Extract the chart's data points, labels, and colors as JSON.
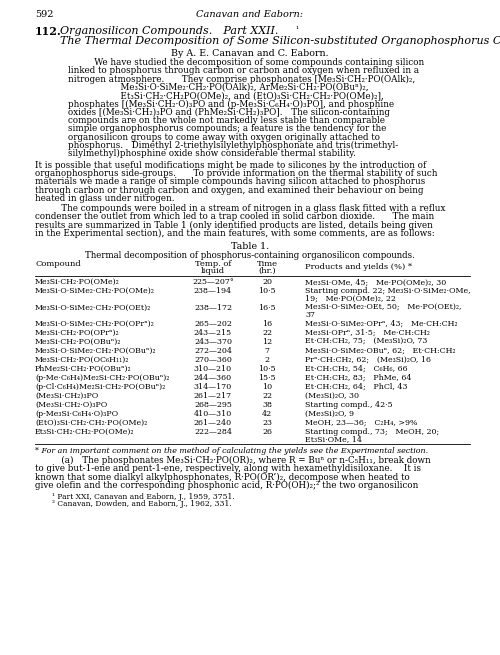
{
  "page_number": "592",
  "header": "Canavan and Eaborn:",
  "article_number": "112.",
  "authors": "By A. E. Canavan and C. Eaborn.",
  "table_title": "Table 1.",
  "table_subtitle": "Thermal decomposition of phosphorus-containing organosilicon compounds.",
  "table_rows": [
    [
      "Me₃Si·CH₂·PO(OMe)₂",
      "225—207°",
      "20",
      "Me₃Si·OMe, 45; Me·PO(OMe)₂, 30"
    ],
    [
      "Me₃Si·O·SiMe₂·CH₂·PO(OMe)₂",
      "238—194",
      "10·5",
      "Starting compd. 22; Me₃Si·O·SiMe₂·OMe,\n19; Me·PO(OMe)₂, 22"
    ],
    [
      "Me₃Si·O·SiMe₂·CH₂·PO(OEt)₂",
      "238—172",
      "16·5",
      "Me₃Si·O·SiMe₂·OEt, 50; Me·PO(OEt)₂,\n37"
    ],
    [
      "Me₃Si·O·SiMe₂·CH₂·PO(OPrⁿ)₂",
      "265—202",
      "16",
      "Me₃Si·O·SiMe₂·OPrⁿ, 43; Me·CH:CH₂"
    ],
    [
      "Me₃Si·CH₂·PO(OPrⁿ)₂",
      "243—215",
      "22",
      "Me₃Si·OPrⁿ, 31·5; Me·CH:CH₂"
    ],
    [
      "Me₃Si·CH₂·PO(OBuⁿ)₂",
      "243—370",
      "12",
      "Et·CH:CH₂, 75; (Me₃Si)₂O, 73"
    ],
    [
      "Me₃Si·O·SiMe₂·CH₂·PO(OBuⁿ)₂",
      "272—204",
      "7",
      "Me₃Si·O·SiMe₂·OBuⁿ, 62; Et·CH:CH₂"
    ],
    [
      "Me₃Si·CH₂·PO(OC₆H₁₁)₂",
      "270—360",
      "2",
      "Prⁿ·CH:CH₂, 62; (Me₃Si)₂O, 16"
    ],
    [
      "PhMe₂Si·CH₂·PO(OBuⁿ)₂",
      "310—210",
      "10·5",
      "Et·CH:CH₂, 54; C₆H₆, 66"
    ],
    [
      "(p-Me·C₆H₄)Me₂Si·CH₂·PO(OBuⁿ)₂",
      "244—360",
      "15·5",
      "Et·CH:CH₂, 83; PhMe, 64"
    ],
    [
      "(p-Cl·C₆H₄)Me₂Si·CH₂·PO(OBuⁿ)₂",
      "314—170",
      "10",
      "Et·CH:CH₂, 64; PhCl, 43"
    ],
    [
      "(Me₃Si·CH₂)₃PO",
      "261—217",
      "22",
      "(Me₃Si)₂O, 30"
    ],
    [
      "(Me₃Si·CH₂·O)₃PO",
      "268—295",
      "38",
      "Starting compd., 42·5"
    ],
    [
      "(p-Me₃Si·C₆H₄·O)₃PO",
      "410—310",
      "42",
      "(Me₃Si)₂O, 9"
    ],
    [
      "(EtO)₃Si·CH₂·CH₂·PO(OMe)₂",
      "261—240",
      "23",
      "MeOH, 23—36; C₂H₄, >9%"
    ],
    [
      "Et₃Si·CH₂·CH₂·PO(OMe)₂",
      "222—284",
      "26",
      "Starting compd., 73; MeOH, 20;\nEt₃Si·OMe, 14"
    ]
  ],
  "footnote_a": "* For an important comment on the method of calculating the yields see the Experimental section.",
  "footnote1": "¹ Part XXI, Canavan and Eaborn, J., 1959, 3751.",
  "footnote2": "² Canavan, Dowden, and Eaborn, J., 1962, 331.",
  "bg_color": "#ffffff",
  "text_color": "#000000"
}
